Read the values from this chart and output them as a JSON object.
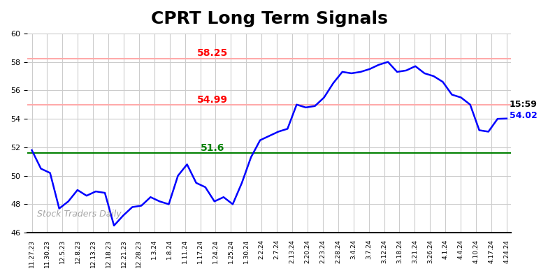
{
  "title": "CPRT Long Term Signals",
  "title_fontsize": 18,
  "line_color": "blue",
  "line_width": 1.8,
  "background_color": "white",
  "grid_color": "#cccccc",
  "ylim": [
    46,
    60
  ],
  "yticks": [
    46,
    48,
    50,
    52,
    54,
    56,
    58,
    60
  ],
  "hline_green": 51.6,
  "hline_red1": 54.99,
  "hline_red2": 58.25,
  "annotation_green": "51.6",
  "annotation_red1": "54.99",
  "annotation_red2": "58.25",
  "annotation_green_color": "green",
  "annotation_red_color": "red",
  "watermark": "Stock Traders Daily",
  "end_label_time": "15:59",
  "end_label_price": "54.02",
  "end_label_price_color": "blue",
  "end_label_time_color": "black",
  "x_labels": [
    "11.27.23",
    "11.30.23",
    "12.5.23",
    "12.8.23",
    "12.13.23",
    "12.18.23",
    "12.21.23",
    "12.28.23",
    "1.3.24",
    "1.8.24",
    "1.11.24",
    "1.17.24",
    "1.24.24",
    "1.25.24",
    "1.30.24",
    "2.2.24",
    "2.7.24",
    "2.13.24",
    "2.20.24",
    "2.23.24",
    "2.28.24",
    "3.4.24",
    "3.7.24",
    "3.12.24",
    "3.18.24",
    "3.21.24",
    "3.26.24",
    "4.1.24",
    "4.4.24",
    "4.10.24",
    "4.17.24",
    "4.24.24"
  ],
  "prices": [
    51.8,
    50.5,
    50.2,
    47.7,
    48.2,
    49.0,
    48.6,
    48.9,
    48.8,
    46.5,
    47.2,
    47.8,
    47.9,
    48.5,
    48.2,
    48.0,
    50.0,
    50.8,
    49.5,
    49.2,
    48.2,
    48.5,
    48.0,
    49.5,
    51.3,
    52.5,
    52.8,
    53.1,
    53.3,
    55.0,
    54.8,
    54.9,
    55.5,
    56.5,
    57.3,
    57.2,
    57.3,
    57.5,
    57.8,
    58.0,
    57.3,
    57.4,
    57.7,
    57.2,
    57.0,
    56.6,
    55.7,
    55.5,
    55.0,
    53.2,
    53.1,
    54.0,
    54.02
  ]
}
